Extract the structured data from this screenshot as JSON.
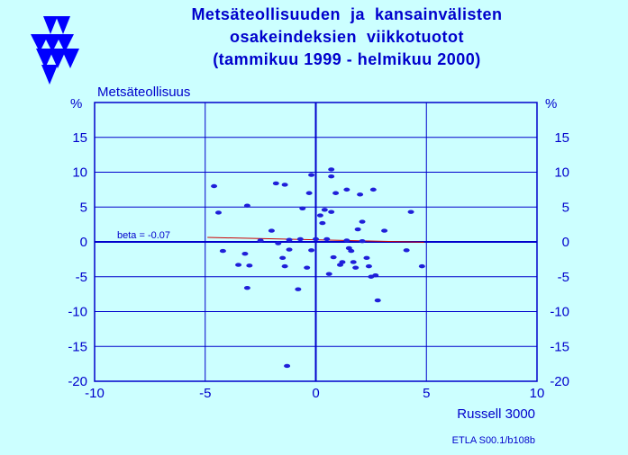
{
  "title_lines": [
    "Metsäteollisuuden  ja  kansainvälisten",
    "osakeindeksien  viikkotuotot",
    "(tammikuu 1999 - helmikuu 2000)"
  ],
  "footer": "ETLA S00.1/b108b",
  "colors": {
    "background": "#ccffff",
    "text": "#0000cc",
    "points": "#1f1fd9",
    "regression": "#cc0000"
  },
  "chart_data": {
    "type": "scatter",
    "ylabel": "Metsäteollisuus",
    "xlabel": "Russell 3000",
    "y_unit_left": "%",
    "y_unit_right": "%",
    "xlim": [
      -10,
      10
    ],
    "ylim": [
      -20,
      20
    ],
    "xticks": [
      "-10",
      "-5",
      "0",
      "5",
      "10"
    ],
    "yticks": [
      "-20",
      "-15",
      "-10",
      "-5",
      "0",
      "5",
      "10",
      "15"
    ],
    "grid": true,
    "annotation": "beta = -0.07",
    "regression": {
      "slope": -0.07,
      "intercept": 0.3,
      "x_range": [
        -4.9,
        4.9
      ]
    },
    "points": [
      [
        -4.6,
        8.0
      ],
      [
        -4.4,
        4.2
      ],
      [
        -4.2,
        -1.3
      ],
      [
        -3.5,
        -3.3
      ],
      [
        -3.2,
        -1.7
      ],
      [
        -3.1,
        5.2
      ],
      [
        -3.1,
        -6.6
      ],
      [
        -3.0,
        -3.4
      ],
      [
        -2.5,
        0.2
      ],
      [
        -2.0,
        1.6
      ],
      [
        -1.8,
        8.4
      ],
      [
        -1.7,
        -0.2
      ],
      [
        -1.5,
        -2.3
      ],
      [
        -1.4,
        8.2
      ],
      [
        -1.4,
        -3.5
      ],
      [
        -1.3,
        -17.8
      ],
      [
        -1.2,
        0.3
      ],
      [
        -1.2,
        -1.1
      ],
      [
        -0.8,
        -6.8
      ],
      [
        -0.7,
        0.4
      ],
      [
        -0.6,
        4.8
      ],
      [
        -0.4,
        -3.7
      ],
      [
        -0.3,
        7.0
      ],
      [
        -0.2,
        9.6
      ],
      [
        -0.2,
        -1.2
      ],
      [
        0.0,
        0.4
      ],
      [
        0.2,
        3.8
      ],
      [
        0.3,
        2.7
      ],
      [
        0.4,
        4.6
      ],
      [
        0.5,
        0.4
      ],
      [
        0.6,
        -4.6
      ],
      [
        0.7,
        9.4
      ],
      [
        0.7,
        10.4
      ],
      [
        0.7,
        4.3
      ],
      [
        0.8,
        -2.2
      ],
      [
        0.9,
        7.0
      ],
      [
        1.1,
        -3.3
      ],
      [
        1.2,
        -2.9
      ],
      [
        1.4,
        7.5
      ],
      [
        1.4,
        0.2
      ],
      [
        1.5,
        -0.9
      ],
      [
        1.6,
        -1.3
      ],
      [
        1.7,
        -2.9
      ],
      [
        1.8,
        -3.7
      ],
      [
        1.9,
        1.8
      ],
      [
        2.0,
        6.8
      ],
      [
        2.1,
        2.9
      ],
      [
        2.1,
        0.1
      ],
      [
        2.3,
        -2.3
      ],
      [
        2.4,
        -3.5
      ],
      [
        2.5,
        -5.0
      ],
      [
        2.6,
        7.5
      ],
      [
        2.7,
        -4.8
      ],
      [
        2.8,
        -8.4
      ],
      [
        3.1,
        1.6
      ],
      [
        4.1,
        -1.2
      ],
      [
        4.3,
        4.3
      ],
      [
        4.8,
        -3.5
      ]
    ]
  }
}
